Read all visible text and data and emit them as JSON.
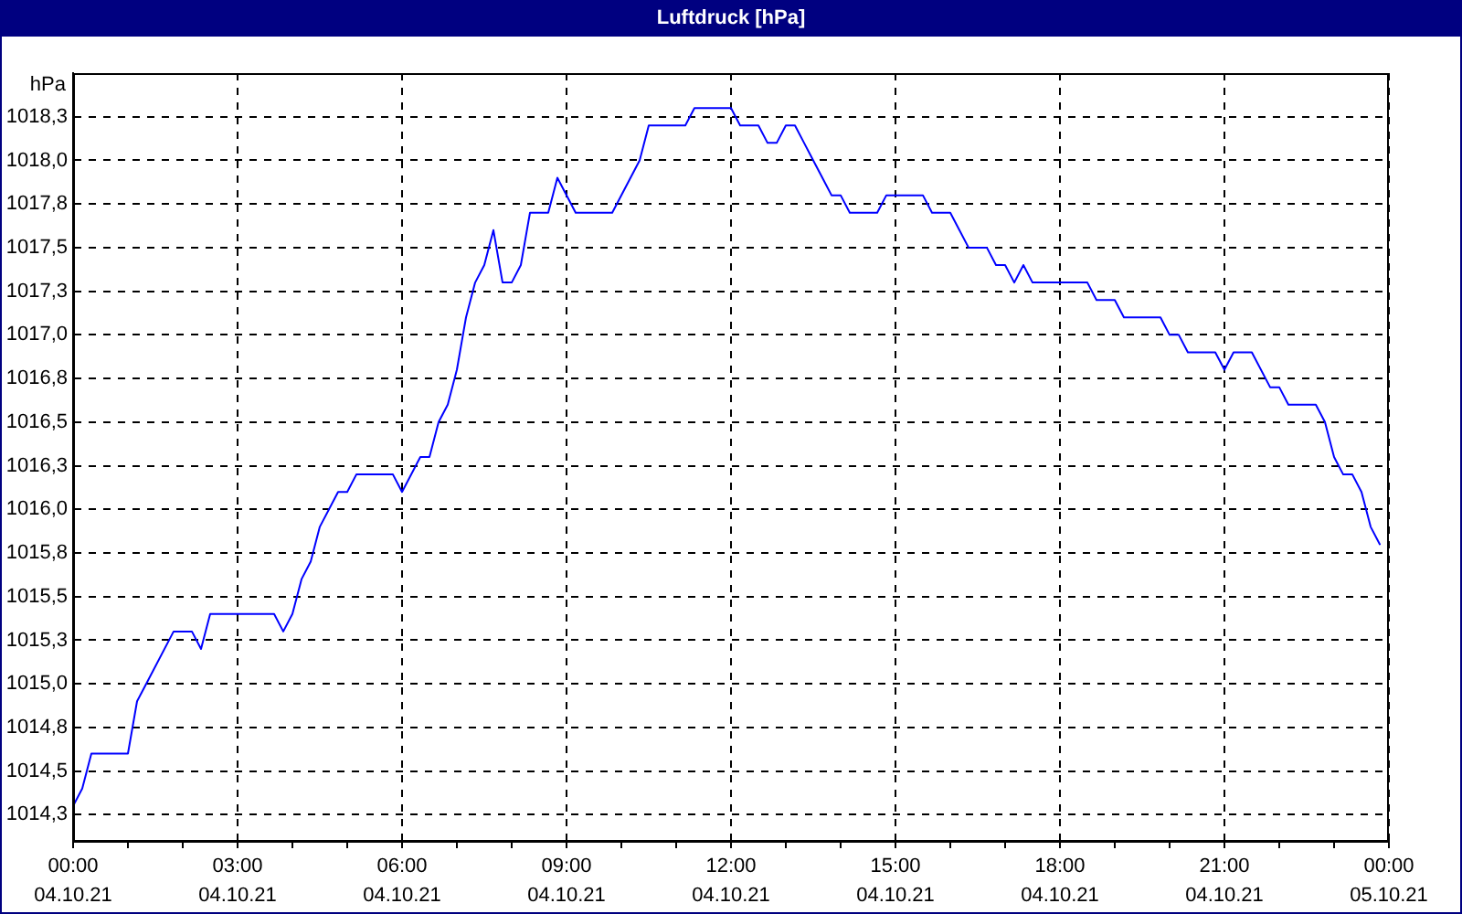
{
  "chart_data": {
    "type": "line",
    "title": "Luftdruck [hPa]",
    "ylabel": "hPa",
    "x": [
      "--10-04T00:00",
      "--10-04T00:10",
      "--10-04T00:20",
      "--10-04T01:00",
      "--10-04T01:10",
      "--10-04T01:20",
      "--10-04T01:50",
      "--10-04T02:10",
      "--10-04T02:20",
      "--10-04T02:30",
      "--10-04T03:40",
      "--10-04T03:50",
      "--10-04T04:00",
      "--10-04T04:10",
      "--10-04T04:20",
      "--10-04T04:30",
      "--10-04T04:50",
      "--10-04T05:00",
      "--10-04T05:10",
      "--10-04T05:50",
      "--10-04T06:00",
      "--10-04T06:20",
      "--10-04T06:30",
      "--10-04T06:40",
      "--10-04T06:50",
      "--10-04T07:00",
      "--10-04T07:10",
      "--10-04T07:20",
      "--10-04T07:30",
      "--10-04T07:40",
      "--10-04T07:50",
      "--10-04T08:00",
      "--10-04T08:10",
      "--10-04T08:20",
      "--10-04T08:40",
      "--10-04T08:50",
      "--10-04T09:10",
      "--10-04T09:50",
      "--10-04T10:20",
      "--10-04T10:30",
      "--10-04T11:10",
      "--10-04T11:20",
      "--10-04T12:00",
      "--10-04T12:10",
      "--10-04T12:30",
      "--10-04T12:40",
      "--10-04T12:50",
      "--10-04T13:00",
      "--10-04T13:10",
      "--10-04T13:20",
      "--10-04T13:30",
      "--10-04T13:40",
      "--10-04T13:50",
      "--10-04T14:00",
      "--10-04T14:10",
      "--10-04T14:40",
      "--10-04T14:50",
      "--10-04T15:30",
      "--10-04T15:40",
      "--10-04T16:00",
      "--10-04T16:20",
      "--10-04T16:40",
      "--10-04T16:50",
      "--10-04T17:00",
      "--10-04T17:10",
      "--10-04T17:20",
      "--10-04T17:30",
      "--10-04T18:30",
      "--10-04T18:40",
      "--10-04T19:00",
      "--10-04T19:10",
      "--10-04T19:50",
      "--10-04T20:00",
      "--10-04T20:10",
      "--10-04T20:20",
      "--10-04T20:50",
      "--10-04T21:00",
      "--10-04T21:10",
      "--10-04T21:30",
      "--10-04T21:50",
      "--10-04T22:00",
      "--10-04T22:10",
      "--10-04T22:40",
      "--10-04T22:50",
      "--10-04T23:00",
      "--10-04T23:10",
      "--10-04T23:20",
      "--10-04T23:30",
      "--10-04T23:40",
      "--10-04T23:50"
    ],
    "values": [
      1014.3,
      1014.4,
      1014.6,
      1014.6,
      1014.9,
      1015.0,
      1015.3,
      1015.3,
      1015.2,
      1015.4,
      1015.4,
      1015.3,
      1015.4,
      1015.6,
      1015.7,
      1015.9,
      1016.1,
      1016.1,
      1016.2,
      1016.2,
      1016.1,
      1016.3,
      1016.3,
      1016.5,
      1016.6,
      1016.8,
      1017.1,
      1017.3,
      1017.4,
      1017.6,
      1017.3,
      1017.3,
      1017.4,
      1017.7,
      1017.7,
      1017.9,
      1017.7,
      1017.7,
      1018.0,
      1018.2,
      1018.2,
      1018.3,
      1018.3,
      1018.2,
      1018.2,
      1018.1,
      1018.1,
      1018.2,
      1018.2,
      1018.1,
      1018.0,
      1017.9,
      1017.8,
      1017.8,
      1017.7,
      1017.7,
      1017.8,
      1017.8,
      1017.7,
      1017.7,
      1017.5,
      1017.5,
      1017.4,
      1017.4,
      1017.3,
      1017.4,
      1017.3,
      1017.3,
      1017.2,
      1017.2,
      1017.1,
      1017.1,
      1017.0,
      1017.0,
      1016.9,
      1016.9,
      1016.8,
      1016.9,
      1016.9,
      1016.7,
      1016.7,
      1016.6,
      1016.6,
      1016.5,
      1016.3,
      1016.2,
      1016.2,
      1016.1,
      1015.9,
      1015.8
    ],
    "color": "#0000ff",
    "xlim": [
      "--10-04T00:00",
      "--10-05T00:00"
    ],
    "xticks": [
      {
        "value": "--10-04T00:00",
        "label": "00:00\n04.10.21"
      },
      {
        "value": "--10-04T01:00",
        "label": null
      },
      {
        "value": "--10-04T02:00",
        "label": null
      },
      {
        "value": "--10-04T03:00",
        "label": "03:00\n04.10.21"
      },
      {
        "value": "--10-04T04:00",
        "label": null
      },
      {
        "value": "--10-04T05:00",
        "label": null
      },
      {
        "value": "--10-04T06:00",
        "label": "06:00\n04.10.21"
      },
      {
        "value": "--10-04T07:00",
        "label": null
      },
      {
        "value": "--10-04T08:00",
        "label": null
      },
      {
        "value": "--10-04T09:00",
        "label": "09:00\n04.10.21"
      },
      {
        "value": "--10-04T10:00",
        "label": null
      },
      {
        "value": "--10-04T11:00",
        "label": null
      },
      {
        "value": "--10-04T12:00",
        "label": "12:00\n04.10.21"
      },
      {
        "value": "--10-04T13:00",
        "label": null
      },
      {
        "value": "--10-04T14:00",
        "label": null
      },
      {
        "value": "--10-04T15:00",
        "label": "15:00\n04.10.21"
      },
      {
        "value": "--10-04T16:00",
        "label": null
      },
      {
        "value": "--10-04T17:00",
        "label": null
      },
      {
        "value": "--10-04T18:00",
        "label": "18:00\n04.10.21"
      },
      {
        "value": "--10-04T19:00",
        "label": null
      },
      {
        "value": "--10-04T20:00",
        "label": null
      },
      {
        "value": "--10-04T21:00",
        "label": "21:00\n04.10.21"
      },
      {
        "value": "--10-04T22:00",
        "label": null
      },
      {
        "value": "--10-04T23:00",
        "label": null
      },
      {
        "value": "--10-05T00:00",
        "label": "00:00\n05.10.21"
      }
    ],
    "ylim": [
      1014.1,
      1018.5
    ],
    "yticks": [
      {
        "value": 1014.25,
        "label": "1014,3"
      },
      {
        "value": 1014.5,
        "label": "1014,5"
      },
      {
        "value": 1014.75,
        "label": "1014,8"
      },
      {
        "value": 1015,
        "label": "1015,0"
      },
      {
        "value": 1015.25,
        "label": "1015,3"
      },
      {
        "value": 1015.5,
        "label": "1015,5"
      },
      {
        "value": 1015.75,
        "label": "1015,8"
      },
      {
        "value": 1016,
        "label": "1016,0"
      },
      {
        "value": 1016.25,
        "label": "1016,3"
      },
      {
        "value": 1016.5,
        "label": "1016,5"
      },
      {
        "value": 1016.75,
        "label": "1016,8"
      },
      {
        "value": 1017,
        "label": "1017,0"
      },
      {
        "value": 1017.25,
        "label": "1017,3"
      },
      {
        "value": 1017.5,
        "label": "1017,5"
      },
      {
        "value": 1017.75,
        "label": "1017,8"
      },
      {
        "value": 1018,
        "label": "1018,0"
      },
      {
        "value": 1018.25,
        "label": "1018,3"
      }
    ],
    "grid": true
  }
}
